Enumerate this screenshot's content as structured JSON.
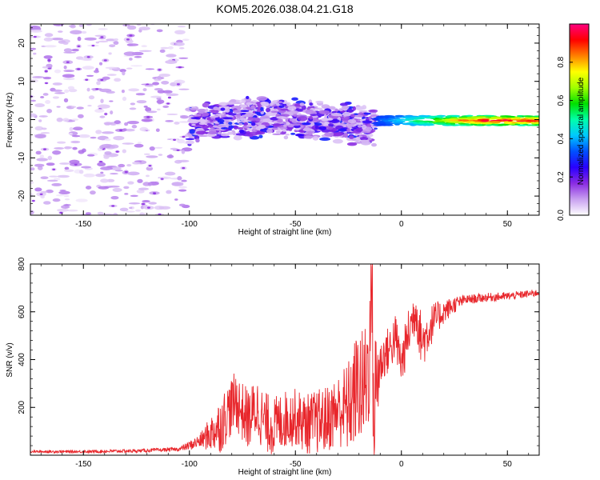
{
  "figure": {
    "title": "KOM5.2026.038.04.21.G18",
    "colors": {
      "snr_line": "#e8262b",
      "frame": "#000000"
    }
  },
  "chart_data": [
    {
      "type": "heatmap",
      "name": "spectrogram",
      "xlabel": "Height of straight line (km)",
      "ylabel": "Frequency (Hz)",
      "xlim": [
        -175,
        65
      ],
      "ylim": [
        -25,
        25
      ],
      "xticks": [
        -150,
        -100,
        -50,
        0,
        50
      ],
      "yticks": [
        -20,
        -10,
        0,
        10,
        20
      ],
      "colorbar": {
        "label": "Normalized spectral amplitude",
        "range": [
          0,
          1
        ],
        "ticks": [
          0.0,
          0.2,
          0.4,
          0.6,
          0.8
        ],
        "tick_labels": [
          "0.0",
          "0.2",
          "0.4",
          "0.6",
          "0.8"
        ],
        "colormap": [
          "#ffffff",
          "#c8a0f0",
          "#8a2be2",
          "#2a00ff",
          "#0050ff",
          "#00c8ff",
          "#00ffaa",
          "#00e000",
          "#a0ff00",
          "#ffff00",
          "#ff8000",
          "#ff0000",
          "#ff0080"
        ]
      },
      "regions": [
        {
          "desc": "scattered noise",
          "x": [
            -175,
            -100
          ],
          "y": [
            -25,
            25
          ],
          "amp": [
            0.02,
            0.12
          ]
        },
        {
          "desc": "diffuse band",
          "x": [
            -100,
            -12
          ],
          "y": [
            -6,
            5
          ],
          "amp": [
            0.05,
            0.3
          ]
        },
        {
          "desc": "narrow line",
          "x": [
            -12,
            65
          ],
          "y": [
            -1.5,
            1.0
          ],
          "amp": [
            0.3,
            1.0
          ]
        }
      ]
    },
    {
      "type": "line",
      "name": "snr",
      "xlabel": "Height of straight line (km)",
      "ylabel": "SNR (v/v)",
      "xlim": [
        -175,
        65
      ],
      "ylim": [
        0,
        800
      ],
      "xticks": [
        -150,
        -100,
        -50,
        0,
        50
      ],
      "yticks": [
        200,
        400,
        600,
        800
      ],
      "series": [
        {
          "name": "SNR",
          "color": "#e8262b",
          "x": [
            -175,
            -150,
            -125,
            -105,
            -100,
            -95,
            -90,
            -85,
            -82,
            -78,
            -75,
            -72,
            -68,
            -65,
            -60,
            -55,
            -50,
            -45,
            -40,
            -35,
            -30,
            -25,
            -20,
            -18,
            -15,
            -14,
            -13,
            -12,
            -10,
            -8,
            -5,
            -3,
            0,
            3,
            5,
            7,
            8,
            10,
            15,
            20,
            25,
            30,
            40,
            50,
            60,
            65
          ],
          "y": [
            15,
            15,
            18,
            25,
            40,
            60,
            90,
            130,
            180,
            230,
            180,
            150,
            200,
            140,
            120,
            150,
            160,
            130,
            140,
            150,
            190,
            200,
            300,
            260,
            420,
            800,
            100,
            300,
            380,
            420,
            450,
            500,
            380,
            500,
            560,
            620,
            540,
            470,
            560,
            600,
            630,
            650,
            660,
            665,
            675,
            680
          ]
        }
      ],
      "noise_amplitude": [
        [
          -175,
          5
        ],
        [
          -105,
          8
        ],
        [
          -95,
          30
        ],
        [
          -85,
          120
        ],
        [
          -70,
          130
        ],
        [
          -50,
          120
        ],
        [
          -30,
          150
        ],
        [
          -20,
          250
        ],
        [
          -12,
          300
        ],
        [
          -10,
          100
        ],
        [
          0,
          100
        ],
        [
          10,
          110
        ],
        [
          20,
          50
        ],
        [
          30,
          20
        ],
        [
          65,
          15
        ]
      ]
    }
  ]
}
